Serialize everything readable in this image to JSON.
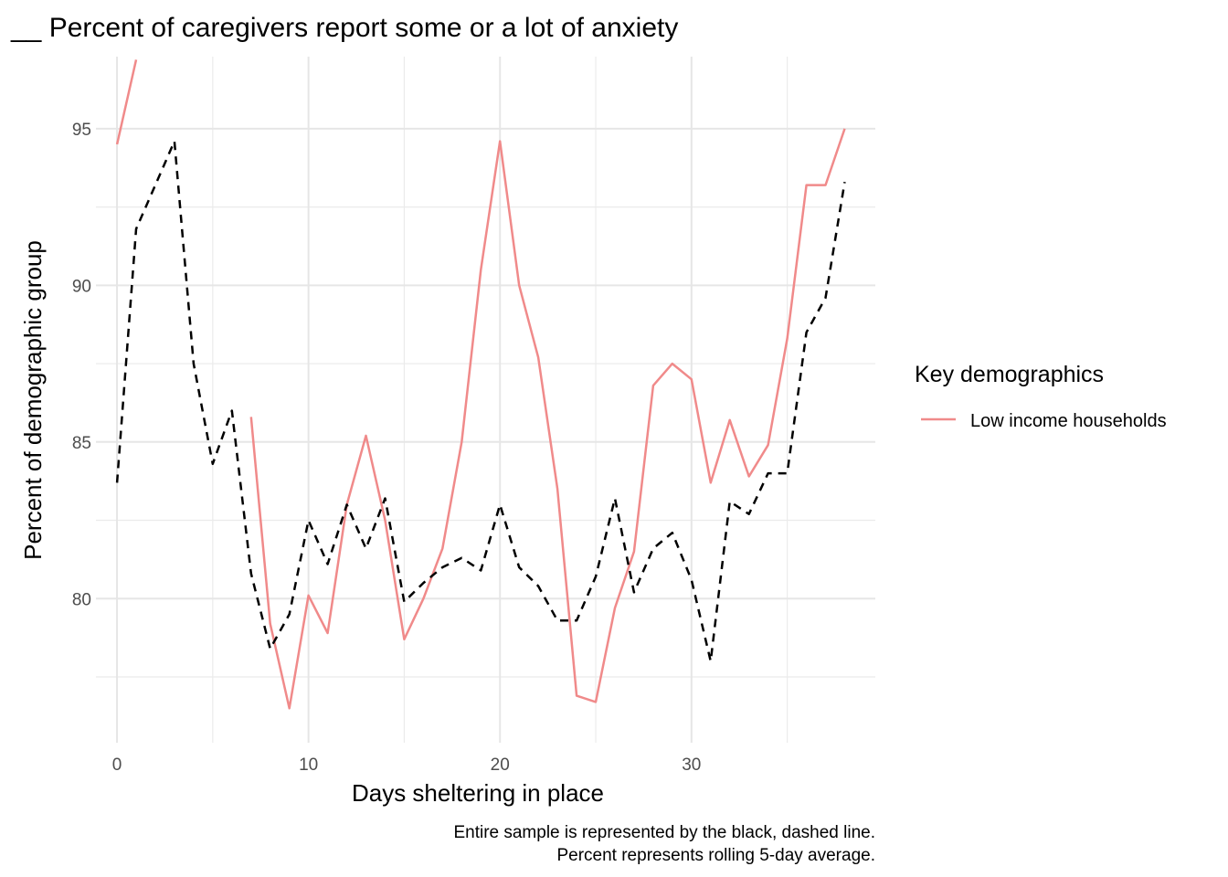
{
  "chart_data": {
    "type": "line",
    "title": "__ Percent of caregivers report some or a lot of anxiety",
    "xlabel": "Days sheltering in place",
    "ylabel": "Percent of demographic group",
    "caption": [
      "Entire sample is represented by the black, dashed line.",
      "Percent represents rolling 5-day average."
    ],
    "xlim": [
      -1.1,
      39.6
    ],
    "ylim": [
      75.4,
      97.3
    ],
    "x_ticks": [
      0,
      10,
      20,
      30
    ],
    "y_ticks": [
      80,
      85,
      90,
      95
    ],
    "grid": true,
    "legend": {
      "title": "Key demographics",
      "position": "right",
      "entries": [
        {
          "label": "Low income households",
          "color": "#f08a8a"
        }
      ]
    },
    "series": [
      {
        "name": "Low income households",
        "color": "#f08a8a",
        "dashed": false,
        "x": [
          0,
          1,
          null,
          7,
          8,
          9,
          10,
          11,
          12,
          13,
          14,
          15,
          16,
          17,
          18,
          19,
          20,
          21,
          22,
          23,
          24,
          25,
          26,
          27,
          28,
          29,
          30,
          31,
          32,
          33,
          34,
          35,
          36,
          37,
          38
        ],
        "y": [
          94.5,
          97.2,
          null,
          85.8,
          79.2,
          76.5,
          80.1,
          78.9,
          83.0,
          85.2,
          82.5,
          78.7,
          80.0,
          81.6,
          85.0,
          90.5,
          94.6,
          90.0,
          87.7,
          83.5,
          76.9,
          76.7,
          79.7,
          81.5,
          86.8,
          87.5,
          87.0,
          83.7,
          85.7,
          83.9,
          84.9,
          88.3,
          93.2,
          93.2,
          95.0
        ]
      },
      {
        "name": "",
        "color": "#000000",
        "dashed": true,
        "x": [
          0,
          1,
          2,
          3,
          4,
          5,
          6,
          7,
          8,
          9,
          10,
          11,
          12,
          13,
          14,
          15,
          16,
          17,
          18,
          19,
          20,
          21,
          22,
          23,
          24,
          25,
          26,
          27,
          28,
          29,
          30,
          31,
          32,
          33,
          34,
          35,
          36,
          37,
          38
        ],
        "y": [
          83.7,
          91.8,
          93.2,
          94.6,
          87.5,
          84.3,
          86.0,
          80.8,
          78.4,
          79.5,
          82.5,
          81.1,
          83.0,
          81.6,
          83.2,
          79.9,
          80.5,
          81.0,
          81.3,
          80.9,
          83.0,
          81.0,
          80.4,
          79.3,
          79.3,
          80.7,
          83.2,
          80.2,
          81.6,
          82.1,
          80.6,
          78.0,
          83.1,
          82.7,
          84.0,
          84.0,
          88.5,
          89.6,
          93.3
        ]
      }
    ]
  }
}
